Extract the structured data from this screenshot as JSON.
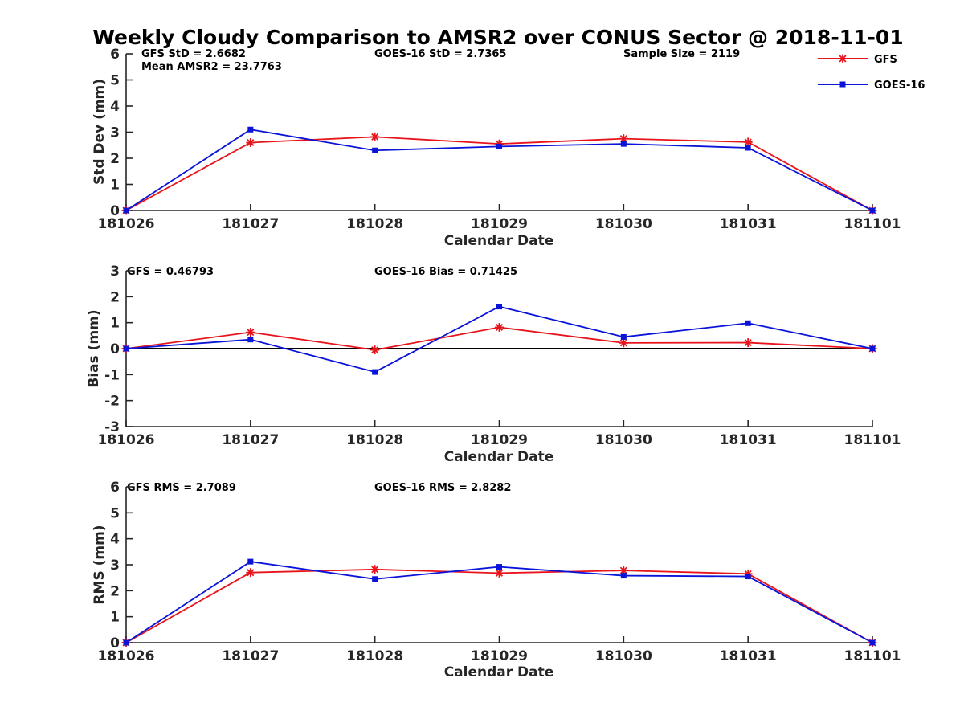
{
  "title": "Weekly Cloudy Comparison to AMSR2 over CONUS Sector @ 2018-11-01",
  "colors": {
    "gfs": "#e8141c",
    "goes": "#0a14d8"
  },
  "legend": [
    {
      "name": "GFS",
      "marker": "asterisk",
      "color": "#e8141c"
    },
    {
      "name": "GOES-16",
      "marker": "square",
      "color": "#0a14d8"
    }
  ],
  "chart_data": [
    {
      "type": "line",
      "ylabel": "Std Dev (mm)",
      "xlabel": "Calendar Date",
      "categories": [
        "181026",
        "181027",
        "181028",
        "181029",
        "181030",
        "181031",
        "181101"
      ],
      "ylim": [
        0,
        6
      ],
      "yticks": [
        0,
        1,
        2,
        3,
        4,
        5,
        6
      ],
      "zero_line": false,
      "annotations": [
        "GFS StD = 2.6682",
        "Mean AMSR2 = 23.7763",
        "GOES-16 StD = 2.7365",
        "Sample Size = 2119"
      ],
      "series": [
        {
          "name": "GFS",
          "values": [
            0.0,
            2.6,
            2.82,
            2.55,
            2.75,
            2.62,
            0.0
          ]
        },
        {
          "name": "GOES-16",
          "values": [
            0.0,
            3.1,
            2.3,
            2.45,
            2.55,
            2.4,
            0.0
          ]
        }
      ]
    },
    {
      "type": "line",
      "ylabel": "Bias (mm)",
      "xlabel": "Calendar Date",
      "categories": [
        "181026",
        "181027",
        "181028",
        "181029",
        "181030",
        "181031",
        "181101"
      ],
      "ylim": [
        -3,
        3
      ],
      "yticks": [
        -3,
        -2,
        -1,
        0,
        1,
        2,
        3
      ],
      "zero_line": true,
      "annotations": [
        "GFS = 0.46793",
        "GOES-16 Bias  = 0.71425"
      ],
      "series": [
        {
          "name": "GFS",
          "values": [
            0.0,
            0.63,
            -0.05,
            0.82,
            0.22,
            0.23,
            0.0
          ]
        },
        {
          "name": "GOES-16",
          "values": [
            0.0,
            0.35,
            -0.9,
            1.62,
            0.45,
            0.98,
            0.0
          ]
        }
      ]
    },
    {
      "type": "line",
      "ylabel": "RMS (mm)",
      "xlabel": "Calendar Date",
      "categories": [
        "181026",
        "181027",
        "181028",
        "181029",
        "181030",
        "181031",
        "181101"
      ],
      "ylim": [
        0,
        6
      ],
      "yticks": [
        0,
        1,
        2,
        3,
        4,
        5,
        6
      ],
      "zero_line": false,
      "annotations": [
        "GFS RMS = 2.7089",
        "GOES-16 RMS = 2.8282"
      ],
      "series": [
        {
          "name": "GFS",
          "values": [
            0.0,
            2.7,
            2.82,
            2.68,
            2.78,
            2.65,
            0.0
          ]
        },
        {
          "name": "GOES-16",
          "values": [
            0.0,
            3.12,
            2.45,
            2.92,
            2.58,
            2.55,
            0.0
          ]
        }
      ]
    }
  ]
}
